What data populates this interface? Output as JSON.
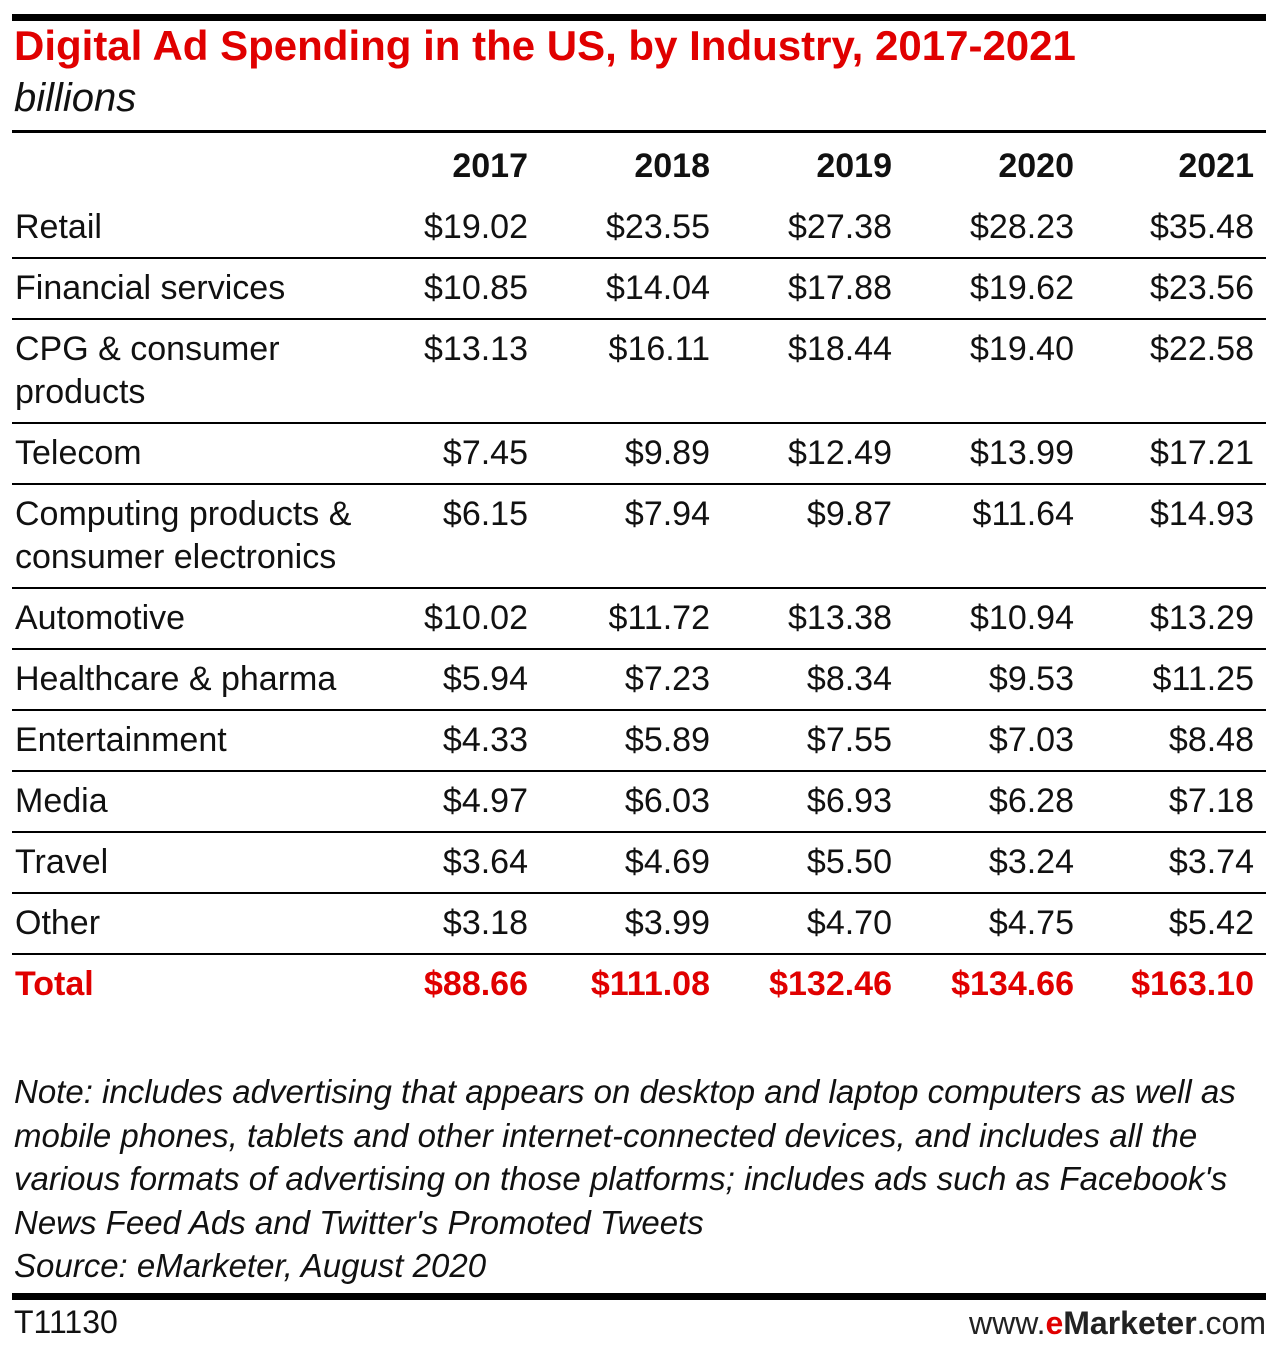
{
  "chart_data": {
    "type": "table",
    "title": "Digital Ad Spending in the US, by Industry, 2017-2021",
    "subtitle": "billions",
    "columns": [
      "2017",
      "2018",
      "2019",
      "2020",
      "2021"
    ],
    "rows": [
      {
        "label": "Retail",
        "values": [
          "$19.02",
          "$23.55",
          "$27.38",
          "$28.23",
          "$35.48"
        ]
      },
      {
        "label": "Financial services",
        "values": [
          "$10.85",
          "$14.04",
          "$17.88",
          "$19.62",
          "$23.56"
        ]
      },
      {
        "label": "CPG & consumer products",
        "values": [
          "$13.13",
          "$16.11",
          "$18.44",
          "$19.40",
          "$22.58"
        ]
      },
      {
        "label": "Telecom",
        "values": [
          "$7.45",
          "$9.89",
          "$12.49",
          "$13.99",
          "$17.21"
        ]
      },
      {
        "label": "Computing products & consumer electronics",
        "values": [
          "$6.15",
          "$7.94",
          "$9.87",
          "$11.64",
          "$14.93"
        ]
      },
      {
        "label": "Automotive",
        "values": [
          "$10.02",
          "$11.72",
          "$13.38",
          "$10.94",
          "$13.29"
        ]
      },
      {
        "label": "Healthcare & pharma",
        "values": [
          "$5.94",
          "$7.23",
          "$8.34",
          "$9.53",
          "$11.25"
        ]
      },
      {
        "label": "Entertainment",
        "values": [
          "$4.33",
          "$5.89",
          "$7.55",
          "$7.03",
          "$8.48"
        ]
      },
      {
        "label": "Media",
        "values": [
          "$4.97",
          "$6.03",
          "$6.93",
          "$6.28",
          "$7.18"
        ]
      },
      {
        "label": "Travel",
        "values": [
          "$3.64",
          "$4.69",
          "$5.50",
          "$3.24",
          "$3.74"
        ]
      },
      {
        "label": "Other",
        "values": [
          "$3.18",
          "$3.99",
          "$4.70",
          "$4.75",
          "$5.42"
        ]
      }
    ],
    "total": {
      "label": "Total",
      "values": [
        "$88.66",
        "$111.08",
        "$132.46",
        "$134.66",
        "$163.10"
      ]
    },
    "accent_color": "#e00000"
  },
  "note": "Note: includes advertising that appears on desktop and laptop computers as well as mobile phones, tablets and other internet-connected devices, and includes all the various formats of advertising on those platforms; includes ads such as Facebook's News Feed Ads and Twitter's Promoted Tweets",
  "source": "Source: eMarketer, August 2020",
  "footer": {
    "code": "T11130",
    "brand_prefix": "www.",
    "brand_e": "e",
    "brand_name": "Marketer",
    "brand_suffix": ".com"
  }
}
